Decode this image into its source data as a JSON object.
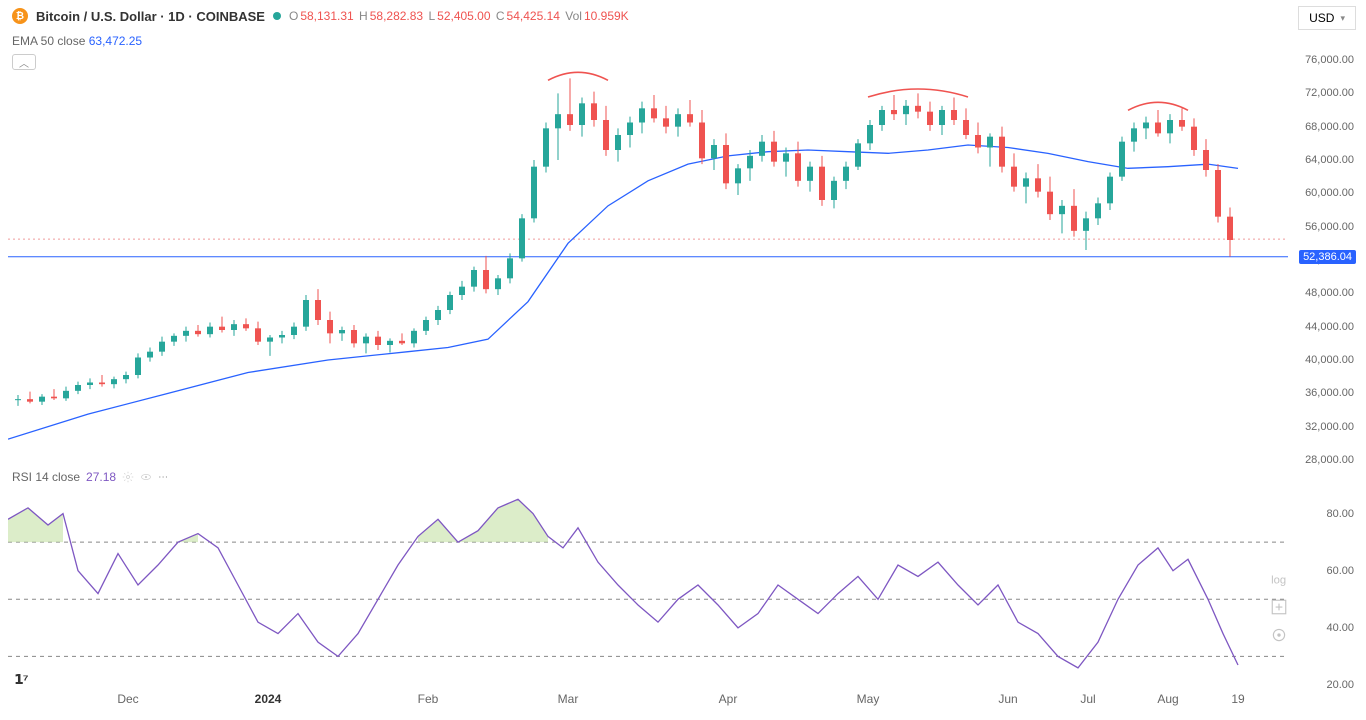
{
  "header": {
    "symbol": "Bitcoin / U.S. Dollar · 1D · COINBASE",
    "o_lbl": "O",
    "o": "58,131.31",
    "h_lbl": "H",
    "h": "58,282.83",
    "l_lbl": "L",
    "l": "52,405.00",
    "c_lbl": "C",
    "c": "54,425.14",
    "vol_lbl": "Vol",
    "vol": "10.959K",
    "currency": "USD"
  },
  "ema": {
    "label": "EMA 50 close",
    "value": "63,472.25"
  },
  "rsi": {
    "label": "RSI 14 close",
    "value": "27.18"
  },
  "price_axis": {
    "min": 28000,
    "max": 76000,
    "ticks": [
      76000,
      72000,
      68000,
      64000,
      60000,
      56000,
      52000,
      48000,
      44000,
      40000,
      36000,
      32000,
      28000
    ],
    "labels": [
      "76,000.00",
      "72,000.00",
      "68,000.00",
      "64,000.00",
      "60,000.00",
      "56,000.00",
      "52,000.00",
      "48,000.00",
      "44,000.00",
      "40,000.00",
      "36,000.00",
      "32,000.00",
      "28,000.00"
    ],
    "current": 52386.04,
    "current_label": "52,386.04",
    "hline_dotted": 54500
  },
  "rsi_axis": {
    "min": 20,
    "max": 90,
    "ticks": [
      80,
      60,
      40,
      20
    ],
    "labels": [
      "80.00",
      "60.00",
      "40.00",
      "20.00"
    ],
    "bands": [
      70,
      50,
      30
    ]
  },
  "xaxis": {
    "months": [
      "Dec",
      "2024",
      "Feb",
      "Mar",
      "Apr",
      "May",
      "Jun",
      "Jul",
      "Aug",
      "19"
    ],
    "positions": [
      120,
      260,
      420,
      560,
      720,
      860,
      1000,
      1080,
      1160,
      1230
    ],
    "bold_idx": 1
  },
  "colors": {
    "up": "#26a69a",
    "down": "#ef5350",
    "ema": "#2962ff",
    "rsi": "#7e57c2",
    "grid": "#e8e8e8",
    "arc": "#ef5350",
    "hline": "#2962ff",
    "dotline": "#ef9a9a"
  },
  "ema_line": [
    [
      0,
      30500
    ],
    [
      80,
      33500
    ],
    [
      160,
      36000
    ],
    [
      240,
      38500
    ],
    [
      320,
      40000
    ],
    [
      400,
      41000
    ],
    [
      440,
      41500
    ],
    [
      480,
      42500
    ],
    [
      520,
      47000
    ],
    [
      560,
      54000
    ],
    [
      600,
      58500
    ],
    [
      640,
      61500
    ],
    [
      680,
      63500
    ],
    [
      720,
      64500
    ],
    [
      760,
      65000
    ],
    [
      800,
      65200
    ],
    [
      840,
      65000
    ],
    [
      880,
      64800
    ],
    [
      920,
      65200
    ],
    [
      960,
      65800
    ],
    [
      1000,
      65500
    ],
    [
      1040,
      64800
    ],
    [
      1080,
      63800
    ],
    [
      1120,
      63000
    ],
    [
      1160,
      63200
    ],
    [
      1200,
      63500
    ],
    [
      1230,
      63000
    ]
  ],
  "rsi_line": [
    [
      0,
      78
    ],
    [
      20,
      82
    ],
    [
      40,
      76
    ],
    [
      55,
      80
    ],
    [
      70,
      60
    ],
    [
      90,
      52
    ],
    [
      110,
      66
    ],
    [
      130,
      55
    ],
    [
      150,
      62
    ],
    [
      170,
      70
    ],
    [
      190,
      73
    ],
    [
      210,
      68
    ],
    [
      230,
      55
    ],
    [
      250,
      42
    ],
    [
      270,
      38
    ],
    [
      290,
      45
    ],
    [
      310,
      35
    ],
    [
      330,
      30
    ],
    [
      350,
      38
    ],
    [
      370,
      50
    ],
    [
      390,
      62
    ],
    [
      410,
      72
    ],
    [
      430,
      78
    ],
    [
      450,
      70
    ],
    [
      470,
      74
    ],
    [
      490,
      82
    ],
    [
      510,
      85
    ],
    [
      525,
      80
    ],
    [
      540,
      72
    ],
    [
      555,
      68
    ],
    [
      570,
      75
    ],
    [
      590,
      63
    ],
    [
      610,
      55
    ],
    [
      630,
      48
    ],
    [
      650,
      42
    ],
    [
      670,
      50
    ],
    [
      690,
      55
    ],
    [
      710,
      48
    ],
    [
      730,
      40
    ],
    [
      750,
      45
    ],
    [
      770,
      55
    ],
    [
      790,
      50
    ],
    [
      810,
      45
    ],
    [
      830,
      52
    ],
    [
      850,
      58
    ],
    [
      870,
      50
    ],
    [
      890,
      62
    ],
    [
      910,
      58
    ],
    [
      930,
      63
    ],
    [
      950,
      55
    ],
    [
      970,
      48
    ],
    [
      990,
      55
    ],
    [
      1010,
      42
    ],
    [
      1030,
      38
    ],
    [
      1050,
      30
    ],
    [
      1070,
      26
    ],
    [
      1090,
      35
    ],
    [
      1110,
      50
    ],
    [
      1130,
      62
    ],
    [
      1150,
      68
    ],
    [
      1165,
      60
    ],
    [
      1180,
      64
    ],
    [
      1200,
      50
    ],
    [
      1215,
      38
    ],
    [
      1230,
      27
    ]
  ],
  "candles": [
    [
      10,
      35200,
      35800,
      34500,
      35300,
      1
    ],
    [
      22,
      35300,
      36200,
      34800,
      35000,
      0
    ],
    [
      34,
      35000,
      35900,
      34600,
      35600,
      1
    ],
    [
      46,
      35600,
      36500,
      35200,
      35400,
      0
    ],
    [
      58,
      35400,
      36800,
      35100,
      36300,
      1
    ],
    [
      70,
      36300,
      37400,
      35900,
      37000,
      1
    ],
    [
      82,
      37000,
      37800,
      36500,
      37300,
      1
    ],
    [
      94,
      37300,
      38200,
      36800,
      37100,
      0
    ],
    [
      106,
      37100,
      38000,
      36600,
      37700,
      1
    ],
    [
      118,
      37700,
      38600,
      37200,
      38200,
      1
    ],
    [
      130,
      38200,
      40800,
      37800,
      40300,
      1
    ],
    [
      142,
      40300,
      41500,
      39800,
      41000,
      1
    ],
    [
      154,
      41000,
      42800,
      40500,
      42200,
      1
    ],
    [
      166,
      42200,
      43200,
      41700,
      42900,
      1
    ],
    [
      178,
      42900,
      44000,
      42200,
      43500,
      1
    ],
    [
      190,
      43500,
      44200,
      42800,
      43100,
      0
    ],
    [
      202,
      43100,
      44500,
      42700,
      44000,
      1
    ],
    [
      214,
      44000,
      45200,
      43300,
      43600,
      0
    ],
    [
      226,
      43600,
      44800,
      42900,
      44300,
      1
    ],
    [
      238,
      44300,
      45000,
      43500,
      43800,
      0
    ],
    [
      250,
      43800,
      44600,
      41800,
      42200,
      0
    ],
    [
      262,
      42200,
      43000,
      40500,
      42700,
      1
    ],
    [
      274,
      42700,
      43500,
      42000,
      43000,
      1
    ],
    [
      286,
      43000,
      44500,
      42500,
      44000,
      1
    ],
    [
      298,
      44000,
      47800,
      43500,
      47200,
      1
    ],
    [
      310,
      47200,
      48500,
      44200,
      44800,
      0
    ],
    [
      322,
      44800,
      45800,
      42000,
      43200,
      0
    ],
    [
      334,
      43200,
      44000,
      42300,
      43600,
      1
    ],
    [
      346,
      43600,
      44200,
      41500,
      42000,
      0
    ],
    [
      358,
      42000,
      43200,
      40800,
      42800,
      1
    ],
    [
      370,
      42800,
      43500,
      41200,
      41800,
      0
    ],
    [
      382,
      41800,
      42600,
      40900,
      42300,
      1
    ],
    [
      394,
      42300,
      43200,
      41800,
      42000,
      0
    ],
    [
      406,
      42000,
      43800,
      41500,
      43500,
      1
    ],
    [
      418,
      43500,
      45200,
      43000,
      44800,
      1
    ],
    [
      430,
      44800,
      46500,
      44200,
      46000,
      1
    ],
    [
      442,
      46000,
      48200,
      45500,
      47800,
      1
    ],
    [
      454,
      47800,
      49500,
      47200,
      48800,
      1
    ],
    [
      466,
      48800,
      51200,
      48200,
      50800,
      1
    ],
    [
      478,
      50800,
      52500,
      48000,
      48500,
      0
    ],
    [
      490,
      48500,
      50200,
      47800,
      49800,
      1
    ],
    [
      502,
      49800,
      52800,
      49200,
      52200,
      1
    ],
    [
      514,
      52200,
      57500,
      51800,
      57000,
      1
    ],
    [
      526,
      57000,
      64000,
      56500,
      63200,
      1
    ],
    [
      538,
      63200,
      68500,
      62500,
      67800,
      1
    ],
    [
      550,
      67800,
      72000,
      64000,
      69500,
      1
    ],
    [
      562,
      69500,
      73800,
      67500,
      68200,
      0
    ],
    [
      574,
      68200,
      71500,
      66800,
      70800,
      1
    ],
    [
      586,
      70800,
      72200,
      68000,
      68800,
      0
    ],
    [
      598,
      68800,
      70500,
      64500,
      65200,
      0
    ],
    [
      610,
      65200,
      67800,
      63800,
      67000,
      1
    ],
    [
      622,
      67000,
      69200,
      65500,
      68500,
      1
    ],
    [
      634,
      68500,
      71000,
      67200,
      70200,
      1
    ],
    [
      646,
      70200,
      71800,
      68500,
      69000,
      0
    ],
    [
      658,
      69000,
      70500,
      67200,
      68000,
      0
    ],
    [
      670,
      68000,
      70200,
      66800,
      69500,
      1
    ],
    [
      682,
      69500,
      71200,
      68000,
      68500,
      0
    ],
    [
      694,
      68500,
      70000,
      63500,
      64200,
      0
    ],
    [
      706,
      64200,
      66500,
      62800,
      65800,
      1
    ],
    [
      718,
      65800,
      67200,
      60500,
      61200,
      0
    ],
    [
      730,
      61200,
      63500,
      59800,
      63000,
      1
    ],
    [
      742,
      63000,
      65200,
      61500,
      64500,
      1
    ],
    [
      754,
      64500,
      67000,
      63800,
      66200,
      1
    ],
    [
      766,
      66200,
      67500,
      63200,
      63800,
      0
    ],
    [
      778,
      63800,
      65500,
      62000,
      64800,
      1
    ],
    [
      790,
      64800,
      66200,
      60800,
      61500,
      0
    ],
    [
      802,
      61500,
      63800,
      60200,
      63200,
      1
    ],
    [
      814,
      63200,
      64500,
      58500,
      59200,
      0
    ],
    [
      826,
      59200,
      62000,
      58200,
      61500,
      1
    ],
    [
      838,
      61500,
      63800,
      60500,
      63200,
      1
    ],
    [
      850,
      63200,
      66500,
      62800,
      66000,
      1
    ],
    [
      862,
      66000,
      68800,
      65200,
      68200,
      1
    ],
    [
      874,
      68200,
      70500,
      67500,
      70000,
      1
    ],
    [
      886,
      70000,
      71800,
      68800,
      69500,
      0
    ],
    [
      898,
      69500,
      71200,
      68200,
      70500,
      1
    ],
    [
      910,
      70500,
      72000,
      69000,
      69800,
      0
    ],
    [
      922,
      69800,
      71000,
      67500,
      68200,
      0
    ],
    [
      934,
      68200,
      70500,
      67000,
      70000,
      1
    ],
    [
      946,
      70000,
      71500,
      68200,
      68800,
      0
    ],
    [
      958,
      68800,
      70200,
      66500,
      67000,
      0
    ],
    [
      970,
      67000,
      68500,
      64800,
      65500,
      0
    ],
    [
      982,
      65500,
      67200,
      63200,
      66800,
      1
    ],
    [
      994,
      66800,
      68000,
      62500,
      63200,
      0
    ],
    [
      1006,
      63200,
      64800,
      60200,
      60800,
      0
    ],
    [
      1018,
      60800,
      62500,
      58800,
      61800,
      1
    ],
    [
      1030,
      61800,
      63500,
      59500,
      60200,
      0
    ],
    [
      1042,
      60200,
      62000,
      56800,
      57500,
      0
    ],
    [
      1054,
      57500,
      59200,
      55200,
      58500,
      1
    ],
    [
      1066,
      58500,
      60500,
      54800,
      55500,
      0
    ],
    [
      1078,
      55500,
      57800,
      53200,
      57000,
      1
    ],
    [
      1090,
      57000,
      59500,
      56200,
      58800,
      1
    ],
    [
      1102,
      58800,
      62500,
      58000,
      62000,
      1
    ],
    [
      1114,
      62000,
      66800,
      61500,
      66200,
      1
    ],
    [
      1126,
      66200,
      68500,
      65000,
      67800,
      1
    ],
    [
      1138,
      67800,
      69200,
      66500,
      68500,
      1
    ],
    [
      1150,
      68500,
      70000,
      66800,
      67200,
      0
    ],
    [
      1162,
      67200,
      69500,
      66000,
      68800,
      1
    ],
    [
      1174,
      68800,
      70200,
      67500,
      68000,
      0
    ],
    [
      1186,
      68000,
      69000,
      64500,
      65200,
      0
    ],
    [
      1198,
      65200,
      66500,
      62000,
      62800,
      0
    ],
    [
      1210,
      62800,
      63500,
      56500,
      57200,
      0
    ],
    [
      1222,
      57200,
      58300,
      52400,
      54400,
      0
    ]
  ],
  "arcs": [
    [
      540,
      600,
      73800
    ],
    [
      860,
      960,
      71800
    ],
    [
      1120,
      1180,
      70200
    ]
  ]
}
